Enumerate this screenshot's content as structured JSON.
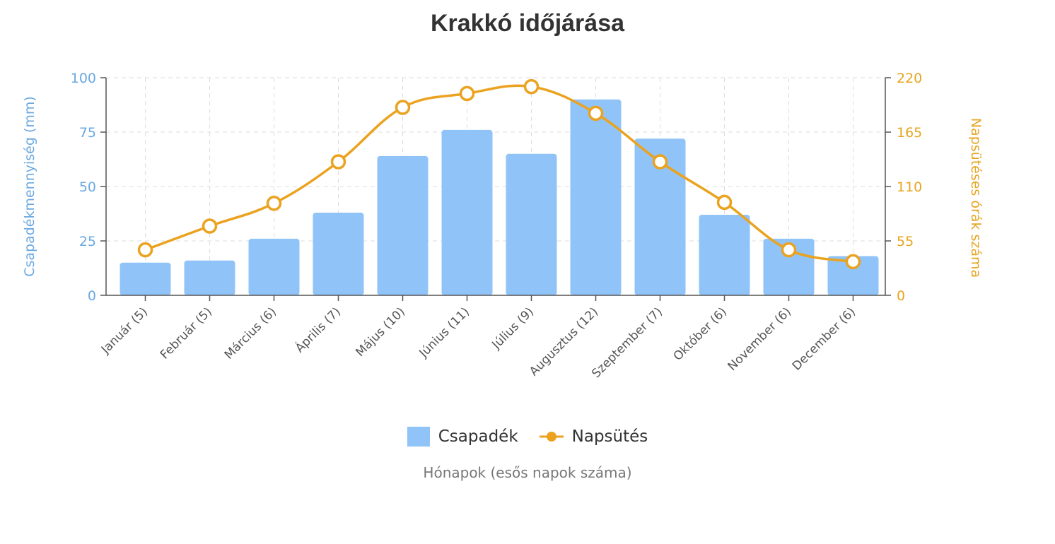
{
  "chart_data": {
    "type": "bar+line",
    "title": "Krakkó időjárása",
    "xlabel": "Hónapok (esős napok száma)",
    "ylabel_left": "Csapadékmennyiség (mm)",
    "ylabel_right": "Napsütéses órák száma",
    "categories": [
      "Január (5)",
      "Február (5)",
      "Március (6)",
      "Április (7)",
      "Május (10)",
      "Június (11)",
      "Július (9)",
      "Augusztus (12)",
      "Szeptember (7)",
      "Október (6)",
      "November (6)",
      "December (6)"
    ],
    "ylim_left": [
      0,
      100
    ],
    "yticks_left": [
      0,
      25,
      50,
      75,
      100
    ],
    "ylim_right": [
      0,
      220
    ],
    "yticks_right": [
      0,
      55,
      110,
      165,
      220
    ],
    "grid": true,
    "legend_position": "bottom",
    "series": [
      {
        "name": "Csapadék",
        "type": "bar",
        "axis": "left",
        "color": "#90c4f8",
        "values": [
          15,
          16,
          26,
          38,
          64,
          76,
          65,
          90,
          72,
          37,
          26,
          18
        ]
      },
      {
        "name": "Napsütés",
        "type": "line",
        "axis": "right",
        "color": "#eba21f",
        "values": [
          46,
          70,
          93,
          135,
          190,
          204,
          211,
          184,
          135,
          94,
          46,
          34
        ]
      }
    ],
    "colors": {
      "left_axis": "#6aa8e0",
      "right_axis": "#e6a520"
    }
  }
}
